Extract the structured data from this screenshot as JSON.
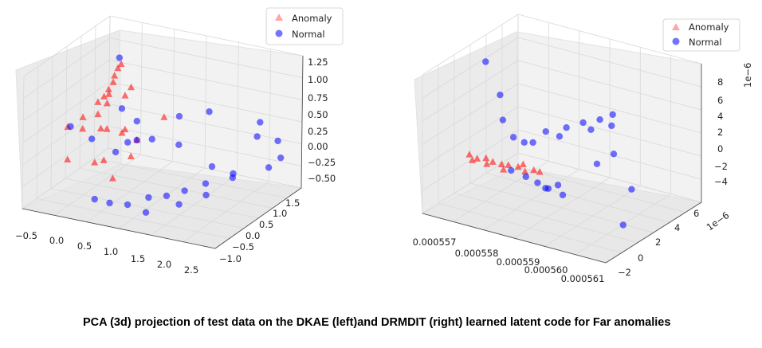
{
  "caption": "PCA (3d) projection of test data on the DKAE (left)and DRMDIT (right) learned latent code for Far anomalies",
  "colors": {
    "anomaly": "#ff0000",
    "normal": "#0000ff"
  },
  "chart_data": [
    {
      "type": "scatter3d",
      "title": "",
      "legend": {
        "placement": "top-right",
        "entries": [
          "Anomaly",
          "Normal"
        ]
      },
      "x_ticks": [
        "−0.5",
        "0.0",
        "0.5",
        "1.0",
        "1.5",
        "2.0",
        "2.5"
      ],
      "y_ticks": [
        "−1.0",
        "−0.5",
        "0.0",
        "0.5",
        "1.0",
        "1.5"
      ],
      "z_ticks": [
        "−0.50",
        "−0.25",
        "0.00",
        "0.25",
        "0.50",
        "0.75",
        "1.00",
        "1.25"
      ],
      "xlim": [
        -0.6,
        2.6
      ],
      "ylim": [
        -1.2,
        1.7
      ],
      "zlim": [
        -0.6,
        1.35
      ],
      "series": [
        {
          "name": "Anomaly",
          "marker": "triangle",
          "points": [
            [
              -0.1,
              0.3,
              0.6
            ],
            [
              0.0,
              0.3,
              0.7
            ],
            [
              0.05,
              0.35,
              0.8
            ],
            [
              0.1,
              0.4,
              0.9
            ],
            [
              0.12,
              0.4,
              1.0
            ],
            [
              0.15,
              0.45,
              1.1
            ],
            [
              0.18,
              0.5,
              1.15
            ],
            [
              0.08,
              0.3,
              0.75
            ],
            [
              0.1,
              0.2,
              0.65
            ],
            [
              0.0,
              0.1,
              0.5
            ],
            [
              -0.2,
              0.0,
              0.45
            ],
            [
              -0.4,
              -0.1,
              0.3
            ],
            [
              -0.3,
              0.2,
              0.2
            ],
            [
              0.2,
              0.0,
              0.35
            ],
            [
              0.4,
              0.1,
              0.3
            ],
            [
              0.6,
              0.2,
              0.2
            ],
            [
              0.5,
              0.0,
              0.4
            ],
            [
              0.9,
              0.5,
              0.5
            ],
            [
              0.3,
              -0.3,
              0.0
            ],
            [
              0.1,
              -0.2,
              -0.1
            ],
            [
              0.5,
              -0.4,
              -0.2
            ],
            [
              -0.3,
              -0.3,
              -0.1
            ],
            [
              0.3,
              0.6,
              0.8
            ],
            [
              0.25,
              0.5,
              0.7
            ],
            [
              0.7,
              -0.2,
              0.1
            ],
            [
              0.05,
              0.1,
              0.3
            ]
          ]
        },
        {
          "name": "Normal",
          "marker": "circle",
          "points": [
            [
              -0.5,
              0.2,
              0.2
            ],
            [
              0.1,
              0.6,
              1.2
            ],
            [
              0.2,
              0.5,
              0.5
            ],
            [
              0.4,
              0.3,
              0.1
            ],
            [
              0.6,
              0.2,
              0.2
            ],
            [
              0.9,
              0.1,
              0.3
            ],
            [
              1.2,
              0.4,
              0.6
            ],
            [
              1.5,
              0.8,
              0.6
            ],
            [
              2.1,
              1.3,
              0.4
            ],
            [
              2.3,
              1.5,
              0.1
            ],
            [
              2.4,
              1.4,
              -0.1
            ],
            [
              2.3,
              1.2,
              -0.2
            ],
            [
              2.2,
              1.0,
              0.3
            ],
            [
              1.9,
              0.8,
              -0.3
            ],
            [
              1.6,
              0.5,
              -0.35
            ],
            [
              1.4,
              0.2,
              -0.4
            ],
            [
              1.2,
              0.0,
              -0.45
            ],
            [
              1.0,
              -0.2,
              -0.45
            ],
            [
              0.8,
              -0.5,
              -0.5
            ],
            [
              0.6,
              -0.7,
              -0.45
            ],
            [
              0.4,
              -0.8,
              -0.4
            ],
            [
              1.7,
              -0.6,
              -0.3
            ],
            [
              2.0,
              -0.3,
              -0.2
            ],
            [
              2.2,
              0.2,
              0.0
            ],
            [
              0.3,
              0.1,
              0.0
            ],
            [
              0.0,
              -0.1,
              0.2
            ],
            [
              0.5,
              0.4,
              0.4
            ],
            [
              1.1,
              0.6,
              0.1
            ],
            [
              1.3,
              -0.9,
              -0.4
            ],
            [
              1.8,
              0.3,
              0.0
            ]
          ]
        }
      ]
    },
    {
      "type": "scatter3d",
      "title": "",
      "legend": {
        "placement": "top-right",
        "entries": [
          "Anomaly",
          "Normal"
        ]
      },
      "x_ticks": [
        "0.000557",
        "0.000558",
        "0.000559",
        "0.000560",
        "0.000561"
      ],
      "y_ticks": [
        "−2",
        "0",
        "2",
        "4",
        "6"
      ],
      "y_offset": "1e−6",
      "z_ticks": [
        "−4",
        "−2",
        "0",
        "2",
        "4",
        "6",
        "8"
      ],
      "z_offset": "1e−6",
      "xlim": [
        0.0005565,
        0.0005612
      ],
      "ylim": [
        -2.5,
        7
      ],
      "zlim": [
        -5,
        9
      ],
      "series": [
        {
          "name": "Anomaly",
          "marker": "triangle",
          "points": [
            [
              0.0005568,
              1.0,
              -1.0
            ],
            [
              0.000557,
              1.0,
              -1.2
            ],
            [
              0.0005572,
              1.1,
              -1.0
            ],
            [
              0.0005574,
              1.0,
              -1.1
            ],
            [
              0.0005576,
              1.1,
              -1.2
            ],
            [
              0.0005578,
              1.0,
              -1.0
            ],
            [
              0.000558,
              1.2,
              -1.1
            ],
            [
              0.0005582,
              1.1,
              -1.3
            ],
            [
              0.0005584,
              1.2,
              -1.0
            ],
            [
              0.0005569,
              0.9,
              -1.4
            ],
            [
              0.0005573,
              0.8,
              -1.3
            ],
            [
              0.0005577,
              0.9,
              -1.5
            ],
            [
              0.0005581,
              1.3,
              -0.8
            ],
            [
              0.0005585,
              1.4,
              -1.2
            ]
          ]
        },
        {
          "name": "Normal",
          "marker": "circle",
          "points": [
            [
              0.0005567,
              3.0,
              7.0
            ],
            [
              0.0005572,
              2.5,
              4.5
            ],
            [
              0.0005574,
              2.0,
              2.5
            ],
            [
              0.0005578,
              1.5,
              1.5
            ],
            [
              0.000558,
              1.8,
              1.0
            ],
            [
              0.0005585,
              2.0,
              2.5
            ],
            [
              0.0005589,
              2.5,
              3.0
            ],
            [
              0.0005592,
              3.0,
              3.5
            ],
            [
              0.0005595,
              3.5,
              3.8
            ],
            [
              0.0005597,
              4.0,
              4.2
            ],
            [
              0.0005598,
              3.5,
              3.5
            ],
            [
              0.0005594,
              3.0,
              3.0
            ],
            [
              0.0005588,
              2.2,
              2.2
            ],
            [
              0.0005583,
              1.5,
              1.5
            ],
            [
              0.000558,
              0.5,
              -1.0
            ],
            [
              0.0005583,
              0.8,
              -1.5
            ],
            [
              0.0005586,
              0.8,
              -1.8
            ],
            [
              0.0005589,
              0.7,
              -2.0
            ],
            [
              0.0005592,
              0.5,
              -1.2
            ],
            [
              0.0005594,
              0.2,
              -1.8
            ],
            [
              0.0005602,
              0.5,
              2.0
            ],
            [
              0.0005605,
              1.0,
              3.0
            ],
            [
              0.0005607,
              2.0,
              -1.0
            ],
            [
              0.000561,
              0.0,
              -3.0
            ],
            [
              0.0005587,
              1.2,
              -2.5
            ]
          ]
        }
      ]
    }
  ]
}
